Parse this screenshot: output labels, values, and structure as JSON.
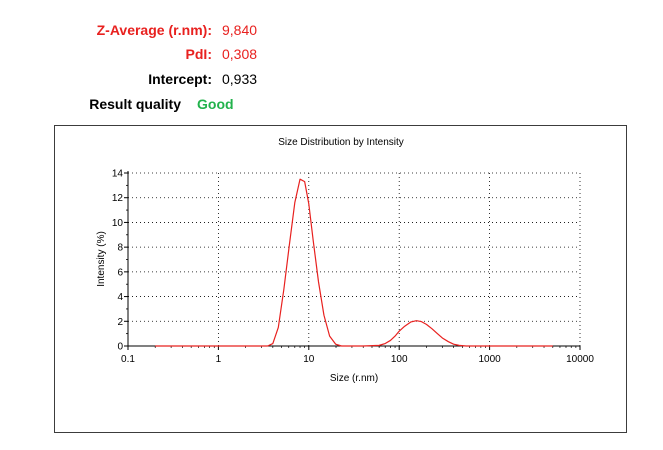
{
  "summary": {
    "z_average": {
      "label": "Z-Average (r.nm):",
      "value": "9,840"
    },
    "pdi": {
      "label": "PdI:",
      "value": "0,308"
    },
    "intercept": {
      "label": "Intercept:",
      "value": "0,933"
    },
    "quality": {
      "label": "Result quality",
      "value": "Good"
    }
  },
  "colors": {
    "highlight": "#e8211f",
    "good": "#22b24c",
    "curve": "#e8211f"
  },
  "chart_data": {
    "type": "line",
    "title": "Size Distribution by Intensity",
    "xlabel": "Size (r.nm)",
    "ylabel": "Intensity (%)",
    "xscale": "log",
    "xlim": [
      0.1,
      10000
    ],
    "ylim": [
      0,
      14
    ],
    "x_ticks": [
      0.1,
      1,
      10,
      100,
      1000,
      10000
    ],
    "x_tick_labels": [
      "0.1",
      "1",
      "10",
      "100",
      "1000",
      "10000"
    ],
    "y_ticks": [
      0,
      2,
      4,
      6,
      8,
      10,
      12,
      14
    ],
    "y_tick_labels": [
      "0",
      "2",
      "4",
      "6",
      "8",
      "10",
      "12",
      "14"
    ],
    "grid": true,
    "series": [
      {
        "x": [
          0.2,
          1,
          3.5,
          4.0,
          4.6,
          5.3,
          6.1,
          7.0,
          8.0,
          9.0,
          10.0,
          11.2,
          12.8,
          14.7,
          17.0,
          19.8,
          23.0,
          40,
          60,
          70,
          80,
          90,
          100,
          115,
          135,
          155,
          175,
          200,
          230,
          265,
          300,
          350,
          400,
          460,
          550,
          1000,
          5000
        ],
        "y": [
          0,
          0,
          0,
          0.2,
          1.5,
          4.6,
          8.2,
          11.6,
          13.5,
          13.3,
          11.5,
          8.5,
          5.2,
          2.5,
          0.8,
          0.15,
          0,
          0,
          0.05,
          0.2,
          0.45,
          0.8,
          1.2,
          1.6,
          1.95,
          2.05,
          1.98,
          1.75,
          1.4,
          1.0,
          0.65,
          0.35,
          0.15,
          0.05,
          0,
          0,
          0
        ]
      }
    ]
  }
}
